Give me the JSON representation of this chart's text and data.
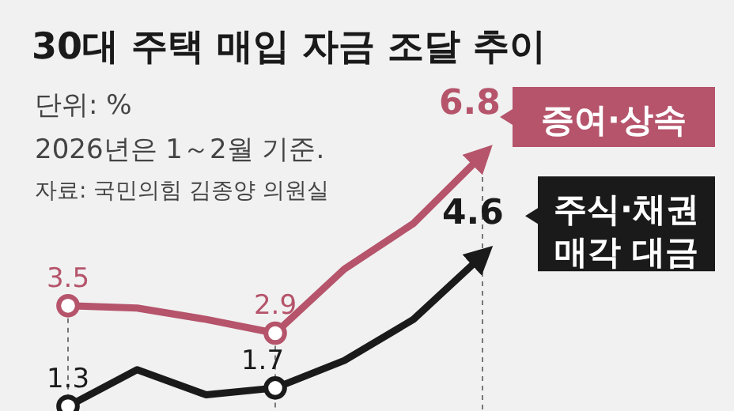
{
  "chart_data": {
    "type": "line",
    "title": "30대 주택 매입 자금 조달 추이",
    "annotations": [
      "단위: %",
      "2026년은 1～2월 기준.",
      "자료: 국민의힘 김종양 의원실"
    ],
    "categories": [
      null,
      null,
      null,
      null,
      null,
      null,
      null
    ],
    "tick_labels": false,
    "legend": "right",
    "line_style": "solid",
    "series": [
      {
        "name": "증여·상속",
        "color": "#b5546b",
        "values": [
          3.5,
          3.45,
          3.2,
          2.9,
          4.3,
          5.3,
          6.8
        ],
        "value_labels": [
          "3.5",
          null,
          null,
          "2.9",
          null,
          null,
          "6.8"
        ]
      },
      {
        "name": "주식·채권 매각 대금",
        "color": "#1a1a1a",
        "values": [
          1.3,
          2.1,
          1.55,
          1.7,
          2.3,
          3.2,
          4.6
        ],
        "value_labels": [
          "1.3",
          null,
          null,
          "1.7",
          null,
          null,
          "4.6"
        ]
      }
    ]
  }
}
